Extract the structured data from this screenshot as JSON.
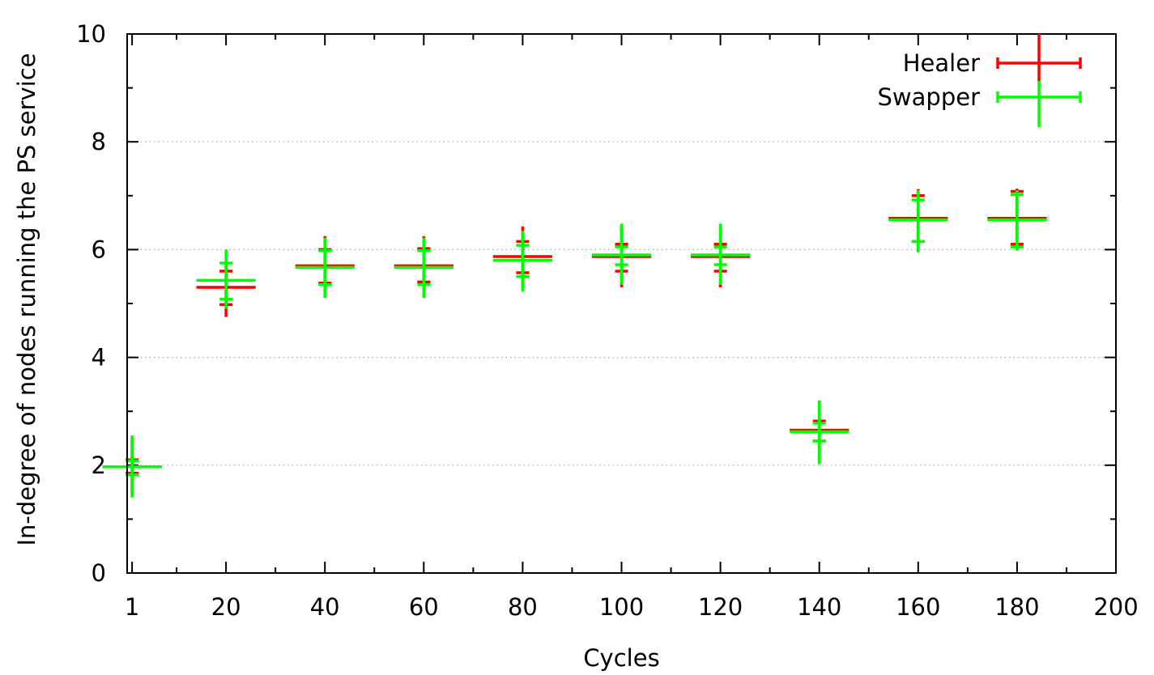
{
  "chart_data": {
    "type": "scatter",
    "title": "",
    "xlabel": "Cycles",
    "ylabel": "In-degree of nodes running the PS service",
    "xlim": [
      0,
      200
    ],
    "ylim": [
      0,
      10
    ],
    "xticks": [
      1,
      20,
      40,
      60,
      80,
      100,
      120,
      140,
      160,
      180,
      200
    ],
    "yticks": [
      0,
      2,
      4,
      6,
      8,
      10
    ],
    "grid": "horizontal-dotted",
    "legend_position": "top-right",
    "series": [
      {
        "name": "Healer",
        "color": "#ff0000",
        "points": [
          {
            "x": 1,
            "y": 1.97,
            "xerr": 6,
            "ylow": 1.45,
            "yhigh": 2.5,
            "qlow": 1.85,
            "qhigh": 2.1
          },
          {
            "x": 20,
            "y": 5.3,
            "xerr": 6,
            "ylow": 4.75,
            "yhigh": 5.75,
            "qlow": 4.98,
            "qhigh": 5.6
          },
          {
            "x": 40,
            "y": 5.7,
            "xerr": 6,
            "ylow": 5.15,
            "yhigh": 6.25,
            "qlow": 5.38,
            "qhigh": 6.0
          },
          {
            "x": 60,
            "y": 5.7,
            "xerr": 6,
            "ylow": 5.15,
            "yhigh": 6.25,
            "qlow": 5.4,
            "qhigh": 6.02
          },
          {
            "x": 80,
            "y": 5.87,
            "xerr": 6,
            "ylow": 5.3,
            "yhigh": 6.43,
            "qlow": 5.57,
            "qhigh": 6.15
          },
          {
            "x": 100,
            "y": 5.87,
            "xerr": 6,
            "ylow": 5.3,
            "yhigh": 6.43,
            "qlow": 5.6,
            "qhigh": 6.1
          },
          {
            "x": 120,
            "y": 5.87,
            "xerr": 6,
            "ylow": 5.3,
            "yhigh": 6.43,
            "qlow": 5.6,
            "qhigh": 6.1
          },
          {
            "x": 140,
            "y": 2.65,
            "xerr": 6,
            "ylow": 2.1,
            "yhigh": 3.2,
            "qlow": 2.45,
            "qhigh": 2.82
          },
          {
            "x": 160,
            "y": 6.58,
            "xerr": 6,
            "ylow": 6.0,
            "yhigh": 7.12,
            "qlow": 6.15,
            "qhigh": 7.0
          },
          {
            "x": 180,
            "y": 6.58,
            "xerr": 6,
            "ylow": 6.0,
            "yhigh": 7.13,
            "qlow": 6.1,
            "qhigh": 7.08
          }
        ]
      },
      {
        "name": "Swapper",
        "color": "#00ff00",
        "points": [
          {
            "x": 1,
            "y": 1.97,
            "xerr": 6,
            "ylow": 1.4,
            "yhigh": 2.55,
            "qlow": 1.82,
            "qhigh": 2.08
          },
          {
            "x": 20,
            "y": 5.43,
            "xerr": 6,
            "ylow": 4.9,
            "yhigh": 6.0,
            "qlow": 5.08,
            "qhigh": 5.75
          },
          {
            "x": 40,
            "y": 5.67,
            "xerr": 6,
            "ylow": 5.1,
            "yhigh": 6.22,
            "qlow": 5.35,
            "qhigh": 5.98
          },
          {
            "x": 60,
            "y": 5.67,
            "xerr": 6,
            "ylow": 5.1,
            "yhigh": 6.22,
            "qlow": 5.35,
            "qhigh": 5.98
          },
          {
            "x": 80,
            "y": 5.8,
            "xerr": 6,
            "ylow": 5.22,
            "yhigh": 6.35,
            "qlow": 5.5,
            "qhigh": 6.08
          },
          {
            "x": 100,
            "y": 5.9,
            "xerr": 6,
            "ylow": 5.35,
            "yhigh": 6.48,
            "qlow": 5.72,
            "qhigh": 6.05
          },
          {
            "x": 120,
            "y": 5.9,
            "xerr": 6,
            "ylow": 5.35,
            "yhigh": 6.48,
            "qlow": 5.72,
            "qhigh": 6.05
          },
          {
            "x": 140,
            "y": 2.62,
            "xerr": 6,
            "ylow": 2.02,
            "yhigh": 3.2,
            "qlow": 2.45,
            "qhigh": 2.78
          },
          {
            "x": 160,
            "y": 6.55,
            "xerr": 6,
            "ylow": 5.95,
            "yhigh": 7.1,
            "qlow": 6.15,
            "qhigh": 6.92
          },
          {
            "x": 180,
            "y": 6.55,
            "xerr": 6,
            "ylow": 5.98,
            "yhigh": 7.1,
            "qlow": 6.05,
            "qhigh": 7.02
          }
        ]
      }
    ]
  }
}
